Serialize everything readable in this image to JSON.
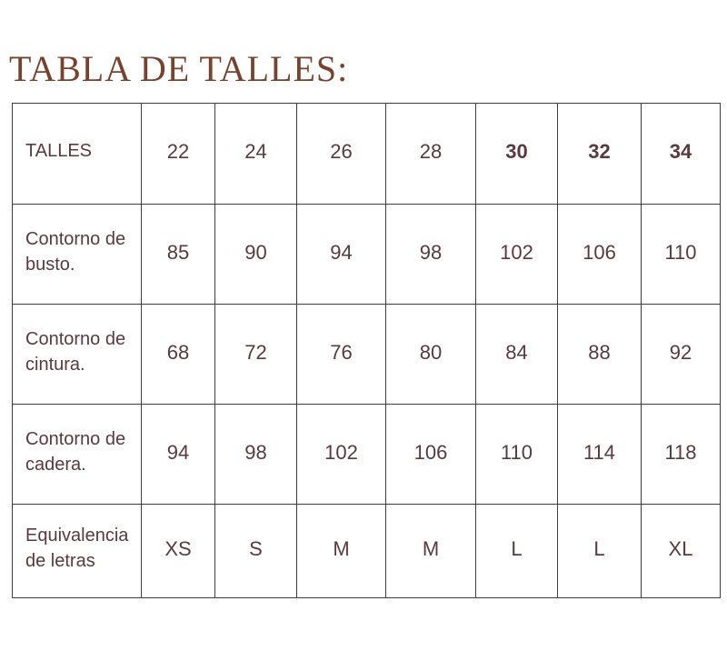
{
  "page": {
    "title": "TABLA DE TALLES:"
  },
  "colors": {
    "title": "#744431",
    "table_text": "#583a3f",
    "border": "#3e3e3e",
    "background": "#ffffff"
  },
  "table": {
    "rows": [
      {
        "name": "sizes-header-row",
        "label": "TALLES",
        "cells": [
          {
            "text": "22",
            "bold": false
          },
          {
            "text": "24",
            "bold": false
          },
          {
            "text": "26",
            "bold": false
          },
          {
            "text": "28",
            "bold": false
          },
          {
            "text": "30",
            "bold": true
          },
          {
            "text": "32",
            "bold": true
          },
          {
            "text": "34",
            "bold": true
          }
        ]
      },
      {
        "name": "bust-circumference-row",
        "label": "Contorno de busto.",
        "cells": [
          {
            "text": "85",
            "bold": false
          },
          {
            "text": "90",
            "bold": false
          },
          {
            "text": "94",
            "bold": false
          },
          {
            "text": "98",
            "bold": false
          },
          {
            "text": "102",
            "bold": false
          },
          {
            "text": "106",
            "bold": false
          },
          {
            "text": "110",
            "bold": false
          }
        ]
      },
      {
        "name": "waist-circumference-row",
        "label": "Contorno de cintura.",
        "cells": [
          {
            "text": "68",
            "bold": false
          },
          {
            "text": "72",
            "bold": false
          },
          {
            "text": "76",
            "bold": false
          },
          {
            "text": "80",
            "bold": false
          },
          {
            "text": "84",
            "bold": false
          },
          {
            "text": "88",
            "bold": false
          },
          {
            "text": "92",
            "bold": false
          }
        ]
      },
      {
        "name": "hip-circumference-row",
        "label": "Contorno de cadera.",
        "cells": [
          {
            "text": "94",
            "bold": false
          },
          {
            "text": "98",
            "bold": false
          },
          {
            "text": "102",
            "bold": false
          },
          {
            "text": "106",
            "bold": false
          },
          {
            "text": "110",
            "bold": false
          },
          {
            "text": "114",
            "bold": false
          },
          {
            "text": "118",
            "bold": false
          }
        ]
      },
      {
        "name": "letter-equivalence-row",
        "label": "Equivalencia de letras",
        "cells": [
          {
            "text": "XS",
            "bold": false
          },
          {
            "text": "S",
            "bold": false
          },
          {
            "text": "M",
            "bold": false
          },
          {
            "text": "M",
            "bold": false
          },
          {
            "text": "L",
            "bold": false
          },
          {
            "text": "L",
            "bold": false
          },
          {
            "text": "XL",
            "bold": false
          }
        ]
      }
    ]
  },
  "chart_data": {
    "type": "table",
    "title": "TABLA DE TALLES:",
    "columns": [
      "TALLES",
      "22",
      "24",
      "26",
      "28",
      "30",
      "32",
      "34"
    ],
    "rows": [
      [
        "Contorno de busto.",
        85,
        90,
        94,
        98,
        102,
        106,
        110
      ],
      [
        "Contorno de cintura.",
        68,
        72,
        76,
        80,
        84,
        88,
        92
      ],
      [
        "Contorno de cadera.",
        94,
        98,
        102,
        106,
        110,
        114,
        118
      ],
      [
        "Equivalencia de letras",
        "XS",
        "S",
        "M",
        "M",
        "L",
        "L",
        "XL"
      ]
    ]
  }
}
